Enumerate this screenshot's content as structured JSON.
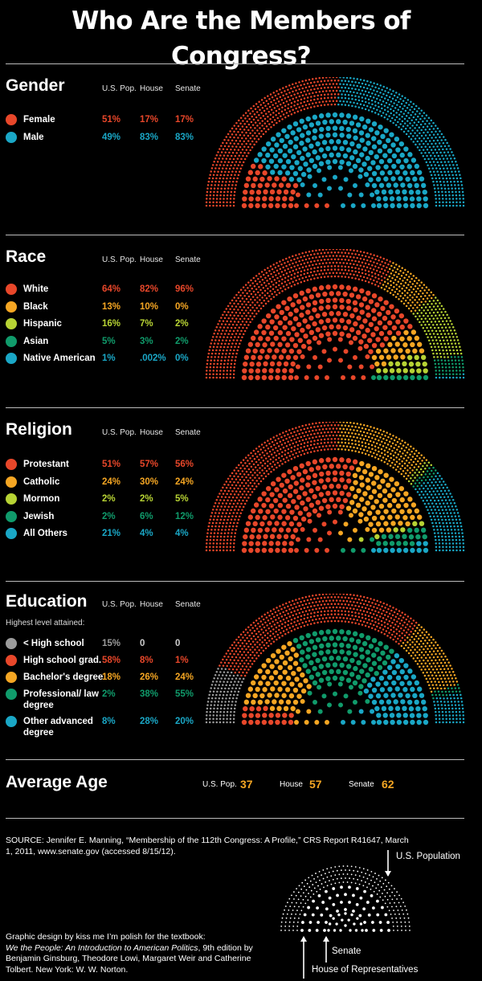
{
  "title": "Who Are the Members of Congress?",
  "colors": {
    "red": "#e8472a",
    "orange": "#f5a623",
    "lime": "#b7d334",
    "green": "#109b6b",
    "blue": "#1aa7c6",
    "gray": "#9b9b9b",
    "white": "#ffffff"
  },
  "column_headers": {
    "pop": "U.S. Pop.",
    "house": "House",
    "senate": "Senate"
  },
  "chart_data": [
    {
      "type": "parliament",
      "title": "Gender",
      "series_labels": [
        "U.S. Pop.",
        "House",
        "Senate"
      ],
      "categories": [
        {
          "label": "Female",
          "color": "#e8472a",
          "pop": "51%",
          "house": "17%",
          "senate": "17%",
          "pop_value": 51,
          "house_value": 17,
          "senate_value": 17
        },
        {
          "label": "Male",
          "color": "#1aa7c6",
          "pop": "49%",
          "house": "83%",
          "senate": "83%",
          "pop_value": 49,
          "house_value": 83,
          "senate_value": 83
        }
      ]
    },
    {
      "type": "parliament",
      "title": "Race",
      "series_labels": [
        "U.S. Pop.",
        "House",
        "Senate"
      ],
      "categories": [
        {
          "label": "White",
          "color": "#e8472a",
          "pop": "64%",
          "house": "82%",
          "senate": "96%",
          "pop_value": 64,
          "house_value": 82,
          "senate_value": 96
        },
        {
          "label": "Black",
          "color": "#f5a623",
          "pop": "13%",
          "house": "10%",
          "senate": "0%",
          "pop_value": 13,
          "house_value": 10,
          "senate_value": 0
        },
        {
          "label": "Hispanic",
          "color": "#b7d334",
          "pop": "16%",
          "house": "7%",
          "senate": "2%",
          "pop_value": 16,
          "house_value": 7,
          "senate_value": 2
        },
        {
          "label": "Asian",
          "color": "#109b6b",
          "pop": "5%",
          "house": "3%",
          "senate": "2%",
          "pop_value": 5,
          "house_value": 3,
          "senate_value": 2
        },
        {
          "label": "Native American",
          "color": "#1aa7c6",
          "pop": "1%",
          "house": ".002%",
          "senate": "0%",
          "pop_value": 1,
          "house_value": 0.002,
          "senate_value": 0
        }
      ]
    },
    {
      "type": "parliament",
      "title": "Religion",
      "series_labels": [
        "U.S. Pop.",
        "House",
        "Senate"
      ],
      "categories": [
        {
          "label": "Protestant",
          "color": "#e8472a",
          "pop": "51%",
          "house": "57%",
          "senate": "56%",
          "pop_value": 51,
          "house_value": 57,
          "senate_value": 56
        },
        {
          "label": "Catholic",
          "color": "#f5a623",
          "pop": "24%",
          "house": "30%",
          "senate": "24%",
          "pop_value": 24,
          "house_value": 30,
          "senate_value": 24
        },
        {
          "label": "Mormon",
          "color": "#b7d334",
          "pop": "2%",
          "house": "2%",
          "senate": "5%",
          "pop_value": 2,
          "house_value": 2,
          "senate_value": 5
        },
        {
          "label": "Jewish",
          "color": "#109b6b",
          "pop": "2%",
          "house": "6%",
          "senate": "12%",
          "pop_value": 2,
          "house_value": 6,
          "senate_value": 12
        },
        {
          "label": "All Others",
          "color": "#1aa7c6",
          "pop": "21%",
          "house": "4%",
          "senate": "4%",
          "pop_value": 21,
          "house_value": 4,
          "senate_value": 4
        }
      ]
    },
    {
      "type": "parliament",
      "title": "Education",
      "subtitle": "Highest level attained:",
      "series_labels": [
        "U.S. Pop.",
        "House",
        "Senate"
      ],
      "categories": [
        {
          "label": "< High school",
          "color": "#9b9b9b",
          "pop": "15%",
          "house": "0",
          "senate": "0",
          "pop_value": 15,
          "house_value": 0,
          "senate_value": 0
        },
        {
          "label": "High school grad.",
          "color": "#e8472a",
          "pop": "58%",
          "house": "8%",
          "senate": "1%",
          "pop_value": 58,
          "house_value": 8,
          "senate_value": 1
        },
        {
          "label": "Bachelor's degree",
          "color": "#f5a623",
          "pop": "18%",
          "house": "26%",
          "senate": "24%",
          "pop_value": 18,
          "house_value": 26,
          "senate_value": 24
        },
        {
          "label": "Professional/ law degree",
          "color": "#109b6b",
          "pop": "2%",
          "house": "38%",
          "senate": "55%",
          "pop_value": 2,
          "house_value": 38,
          "senate_value": 55
        },
        {
          "label": "Other advanced degree",
          "color": "#1aa7c6",
          "pop": "8%",
          "house": "28%",
          "senate": "20%",
          "pop_value": 8,
          "house_value": 28,
          "senate_value": 20
        }
      ]
    }
  ],
  "average_age": {
    "title": "Average Age",
    "pop_label": "U.S. Pop.",
    "pop_value": "37",
    "house_label": "House",
    "house_value": "57",
    "senate_label": "Senate",
    "senate_value": "62"
  },
  "source": "SOURCE: Jennifer E. Manning, “Membership of the 112th Congress: A Profile,” CRS Report R41647, March 1, 2011, www.senate.gov (accessed 8/15/12).",
  "credit": {
    "line1": "Graphic design by kiss me I’m polish for the textbook:",
    "book": "We the People: An Introduction to American Politics",
    "line2": ", 9th edition by Benjamin Ginsburg, Theodore Lowi, Margaret Weir and Catherine Tolbert. New York: W. W. Norton."
  },
  "legend": {
    "pop": "U.S. Population",
    "senate": "Senate",
    "house": "House of Representatives"
  }
}
